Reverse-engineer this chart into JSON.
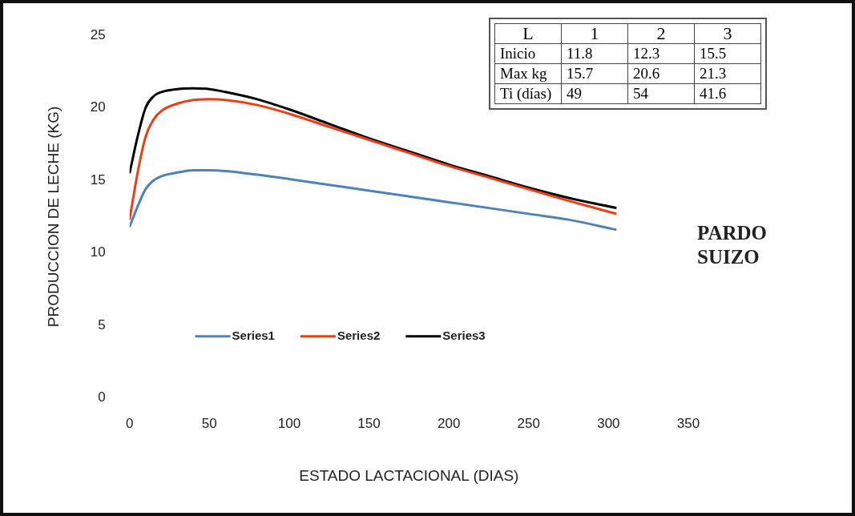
{
  "chart_data": {
    "type": "line",
    "xlabel": "ESTADO LACTACIONAL (DIAS)",
    "ylabel": "PRODUCCION DE LECHE (KG)",
    "x": [
      0,
      5,
      10,
      15,
      20,
      30,
      40,
      50,
      60,
      80,
      100,
      125,
      150,
      175,
      200,
      225,
      250,
      275,
      305
    ],
    "series": [
      {
        "name": "Series1",
        "color": "#4f81bd",
        "values": [
          11.8,
          13.2,
          14.4,
          15.0,
          15.3,
          15.55,
          15.7,
          15.7,
          15.65,
          15.4,
          15.1,
          14.7,
          14.3,
          13.9,
          13.5,
          13.1,
          12.7,
          12.3,
          11.6
        ]
      },
      {
        "name": "Series2",
        "color": "#f03c14",
        "values": [
          12.3,
          15.5,
          18.0,
          19.2,
          19.8,
          20.3,
          20.55,
          20.6,
          20.55,
          20.2,
          19.6,
          18.7,
          17.8,
          16.9,
          16.0,
          15.2,
          14.4,
          13.6,
          12.7
        ]
      },
      {
        "name": "Series3",
        "color": "#000000",
        "values": [
          15.5,
          18.0,
          20.0,
          20.8,
          21.1,
          21.3,
          21.35,
          21.3,
          21.1,
          20.6,
          19.9,
          18.9,
          17.9,
          17.0,
          16.1,
          15.3,
          14.5,
          13.8,
          13.1
        ]
      }
    ],
    "xlim": [
      0,
      350
    ],
    "xticks": [
      0,
      50,
      100,
      150,
      200,
      250,
      300,
      350
    ],
    "ylim": [
      0,
      25
    ],
    "yticks": [
      0,
      5,
      10,
      15,
      20,
      25
    ],
    "grid": false,
    "legend": "bottom",
    "marker": "none",
    "line_style": "solid",
    "annotations": [
      "PARDO SUIZO",
      "L",
      "1",
      "2",
      "3",
      "Inicio",
      "11.8",
      "12.3",
      "15.5",
      "Max kg",
      "15.7",
      "20.6",
      "21.3",
      "Ti (días)",
      "49",
      "54",
      "41.6"
    ]
  }
}
